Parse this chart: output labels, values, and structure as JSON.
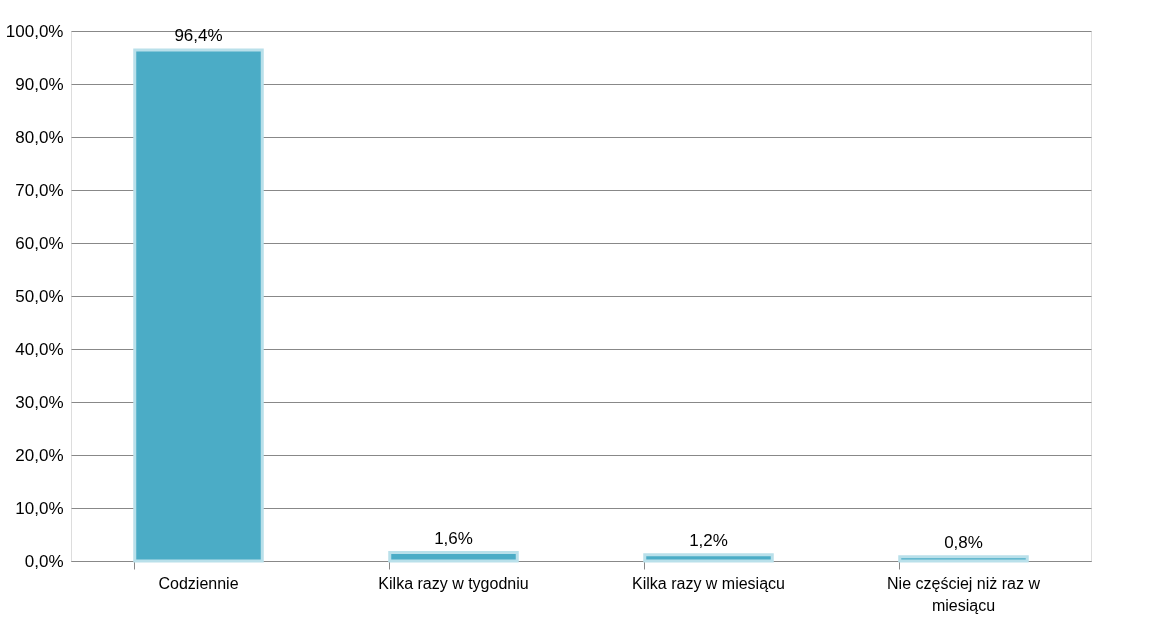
{
  "chart_data": {
    "type": "bar",
    "categories": [
      "Codziennie",
      "Kilka razy w tygodniu",
      "Kilka razy w miesiącu",
      "Nie częściej niż raz w miesiącu"
    ],
    "values": [
      96.4,
      1.6,
      1.2,
      0.8
    ],
    "value_labels": [
      "96,4%",
      "1,6%",
      "1,2%",
      "0,8%"
    ],
    "color": "#4bacc6",
    "ylim": [
      0,
      100
    ],
    "yticks": [
      {
        "value": 0,
        "label": "0,0%"
      },
      {
        "value": 10,
        "label": "10,0%"
      },
      {
        "value": 20,
        "label": "20,0%"
      },
      {
        "value": 30,
        "label": "30,0%"
      },
      {
        "value": 40,
        "label": "40,0%"
      },
      {
        "value": 50,
        "label": "50,0%"
      },
      {
        "value": 60,
        "label": "60,0%"
      },
      {
        "value": 70,
        "label": "70,0%"
      },
      {
        "value": 80,
        "label": "80,0%"
      },
      {
        "value": 90,
        "label": "90,0%"
      },
      {
        "value": 100,
        "label": "100,0%"
      }
    ],
    "grid": "y"
  }
}
